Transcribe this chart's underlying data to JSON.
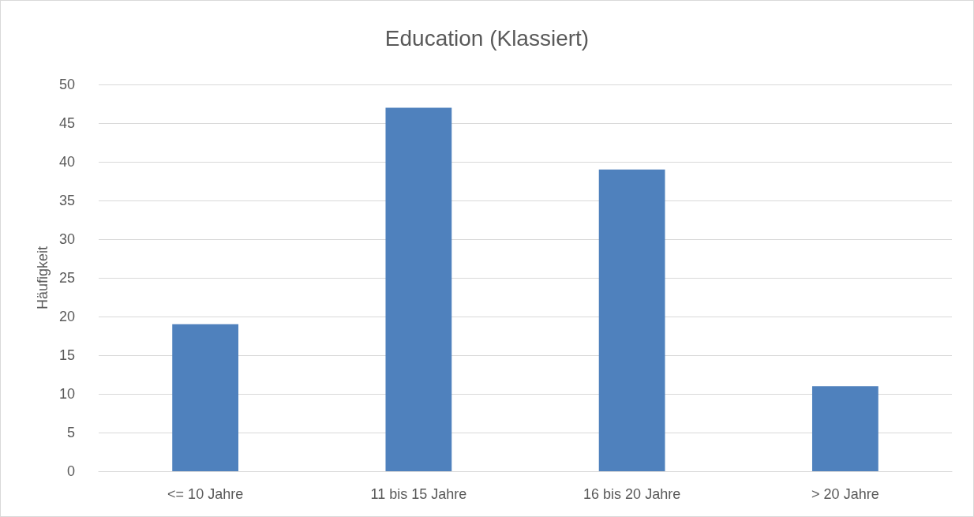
{
  "chart_data": {
    "type": "bar",
    "title": "Education (Klassiert)",
    "ylabel": "Häufigkeit",
    "categories": [
      "<= 10 Jahre",
      "11 bis 15 Jahre",
      "16 bis 20 Jahre",
      "> 20 Jahre"
    ],
    "values": [
      19,
      47,
      39,
      11
    ],
    "color": "#4f81bd",
    "ylim": [
      0,
      50
    ],
    "yticks": [
      0,
      5,
      10,
      15,
      20,
      25,
      30,
      35,
      40,
      45,
      50
    ],
    "grid": "y"
  }
}
